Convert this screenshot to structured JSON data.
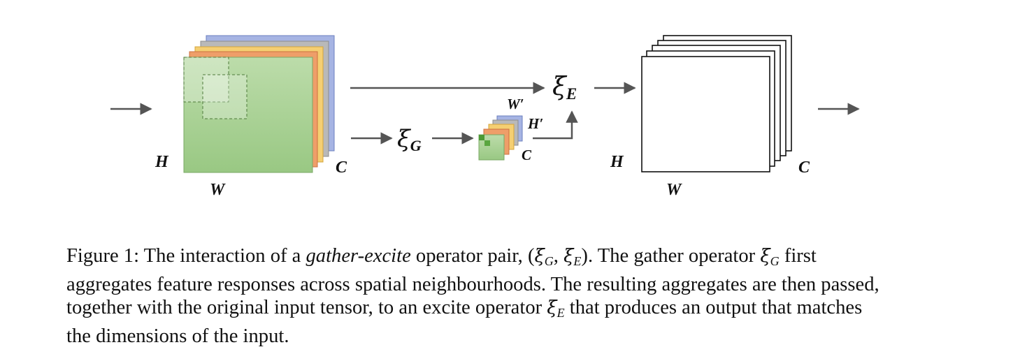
{
  "figure": {
    "input_labels": {
      "height": "H",
      "width": "W",
      "channels": "C"
    },
    "gather_labels": {
      "width": "W′",
      "height": "H′",
      "channels": "C"
    },
    "output_labels": {
      "height": "H",
      "width": "W",
      "channels": "C"
    },
    "gather_operator": {
      "symbol": "ξ",
      "subscript": "G"
    },
    "excite_operator": {
      "symbol": "ξ",
      "subscript": "E"
    },
    "colors": {
      "green": "#9ccb84",
      "orange": "#ee9e69",
      "yellow": "#f5cf72",
      "gray": "#b9b9b9",
      "blue": "#a6b4e3",
      "arrow": "#555555"
    }
  },
  "caption": {
    "prefix": "Figure 1: The interaction of a ",
    "emphasis": "gather-excite",
    "after_emphasis": " operator pair, ",
    "pair_open": "(",
    "pair_xi_g": "ξ",
    "pair_g": "G",
    "pair_sep": ", ",
    "pair_xi_e": "ξ",
    "pair_e": "E",
    "pair_close": ")",
    "after_pair": ". The gather operator ",
    "op_g_xi": "ξ",
    "op_g_sub": "G",
    "line1_end": " first",
    "line2": "aggregates feature responses across spatial neighbourhoods. The resulting aggregates are then passed,",
    "line3_start": "together with the original input tensor, to an excite operator ",
    "op_e_xi": "ξ",
    "op_e_sub": "E",
    "line3_end": " that produces an output that matches",
    "line4": "the dimensions of the input."
  }
}
